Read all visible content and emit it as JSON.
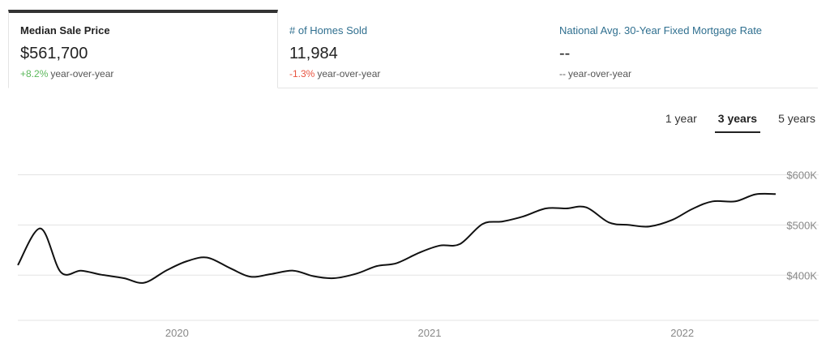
{
  "metrics": [
    {
      "title": "Median Sale Price",
      "value": "$561,700",
      "change_pct": "+8.2%",
      "change_label": "year-over-year",
      "change_color": "#5cb85c",
      "active": true
    },
    {
      "title": "# of Homes Sold",
      "value": "11,984",
      "change_pct": "-1.3%",
      "change_label": "year-over-year",
      "change_color": "#e8533f",
      "active": false
    },
    {
      "title": "National Avg. 30-Year Fixed Mortgage Rate",
      "value": "--",
      "change_pct": "--",
      "change_label": "year-over-year",
      "change_color": "#555555",
      "active": false
    }
  ],
  "range_tabs": [
    {
      "label": "1 year",
      "active": false
    },
    {
      "label": "3 years",
      "active": true
    },
    {
      "label": "5 years",
      "active": false
    }
  ],
  "chart_data": {
    "type": "line",
    "title": "",
    "xlabel": "",
    "ylabel": "",
    "x_ticks": [
      {
        "label": "2020",
        "x": 2020.0
      },
      {
        "label": "2021",
        "x": 2021.0
      },
      {
        "label": "2022",
        "x": 2022.0
      }
    ],
    "y_ticks": [
      {
        "label": "$400K",
        "value": 400000
      },
      {
        "label": "$500K",
        "value": 500000
      },
      {
        "label": "$600K",
        "value": 600000
      }
    ],
    "xlim": [
      2019.37,
      2022.37
    ],
    "ylim": [
      310000,
      625000
    ],
    "grid": true,
    "line_color": "#111111",
    "series": [
      {
        "x": [
          2019.37,
          2019.46,
          2019.54,
          2019.62,
          2019.7,
          2019.79,
          2019.87,
          2019.96,
          2020.04,
          2020.12,
          2020.21,
          2020.29,
          2020.37,
          2020.46,
          2020.54,
          2020.62,
          2020.71,
          2020.79,
          2020.87,
          2020.96,
          2021.04,
          2021.12,
          2021.21,
          2021.29,
          2021.37,
          2021.46,
          2021.54,
          2021.62,
          2021.71,
          2021.79,
          2021.87,
          2021.96,
          2022.04,
          2022.12,
          2022.21,
          2022.29,
          2022.37
        ],
        "values": [
          420000,
          493000,
          406000,
          409000,
          401000,
          394000,
          385000,
          410000,
          428000,
          435000,
          414000,
          397000,
          402000,
          409000,
          398000,
          394000,
          403000,
          418000,
          424000,
          445000,
          459000,
          462000,
          502000,
          507000,
          517000,
          533000,
          533000,
          535000,
          505000,
          500000,
          497000,
          510000,
          532000,
          547000,
          547000,
          561000,
          561700
        ]
      }
    ]
  }
}
